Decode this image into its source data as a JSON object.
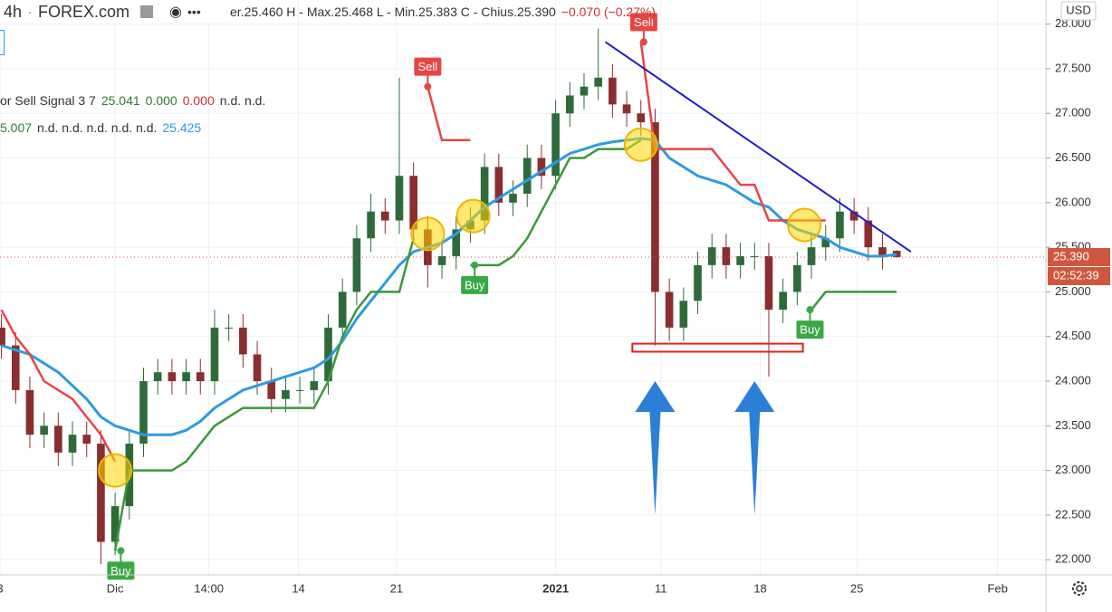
{
  "header": {
    "interval": "4h",
    "source": "FOREX.com",
    "ohlc": "er.25.460 H - Max.25.468 L - Min.25.383 C - Chius.25.390",
    "change": "−0.070 (−0.27%)",
    "indicator_name": "or Sell Signal 3 7",
    "indicator_values": [
      "25.041",
      "0.000",
      "0.000",
      "n.d. n.d."
    ],
    "ma_values": [
      "5.007",
      "n.d. n.d. n.d. n.d. n.d.",
      "25.425"
    ],
    "currency": "USD",
    "last_price_label": "25.390",
    "countdown": "02:52:39"
  },
  "chart_data": {
    "type": "candlestick",
    "x": [
      -8,
      -7,
      -6,
      -5,
      -4,
      -3,
      -2,
      -1,
      0,
      1,
      2,
      3,
      4,
      5,
      6,
      7,
      8,
      9,
      10,
      11,
      12,
      13,
      14,
      15,
      16,
      17,
      18,
      19,
      20,
      21,
      22,
      23,
      24,
      25,
      26,
      27,
      28,
      29,
      30,
      31,
      32,
      33,
      34,
      35,
      36,
      37,
      38,
      39,
      40,
      41,
      42,
      43,
      44,
      45,
      46,
      47,
      48,
      49,
      50,
      51,
      52,
      53,
      54,
      55
    ],
    "open": [
      24.6,
      24.4,
      23.9,
      23.4,
      23.5,
      23.2,
      23.4,
      23.3,
      22.2,
      22.6,
      23.3,
      24.0,
      24.1,
      24.0,
      24.1,
      24.0,
      24.6,
      24.6,
      24.3,
      24.0,
      23.8,
      23.9,
      23.9,
      24.0,
      24.6,
      25.0,
      25.6,
      25.9,
      25.8,
      26.3,
      25.7,
      25.3,
      25.4,
      25.7,
      25.8,
      26.4,
      26.0,
      26.1,
      26.5,
      26.3,
      27.0,
      27.2,
      27.3,
      27.4,
      27.1,
      27.0,
      26.9,
      25.0,
      24.6,
      24.9,
      25.3,
      25.5,
      25.3,
      25.4,
      25.4,
      24.8,
      25.0,
      25.3,
      25.5,
      25.6,
      25.9,
      25.8,
      25.5,
      25.46
    ],
    "high": [
      24.75,
      24.55,
      24.05,
      23.65,
      23.65,
      23.55,
      23.55,
      23.45,
      22.75,
      23.45,
      24.15,
      24.25,
      24.25,
      24.25,
      24.25,
      24.8,
      24.75,
      24.75,
      24.45,
      24.15,
      24.05,
      24.05,
      24.15,
      24.75,
      25.15,
      25.75,
      26.1,
      26.05,
      27.4,
      26.45,
      25.85,
      25.55,
      25.85,
      25.95,
      26.55,
      26.55,
      26.25,
      26.65,
      26.65,
      27.15,
      27.35,
      27.45,
      27.95,
      27.55,
      27.25,
      27.15,
      27.05,
      25.15,
      25.05,
      25.45,
      25.65,
      25.65,
      25.55,
      25.55,
      25.55,
      25.15,
      25.45,
      25.65,
      25.75,
      26.05,
      26.05,
      25.95,
      25.65,
      25.468
    ],
    "low": [
      24.25,
      23.75,
      23.25,
      23.25,
      23.05,
      23.05,
      23.15,
      21.95,
      22.05,
      22.45,
      23.15,
      23.85,
      23.85,
      23.85,
      23.85,
      23.85,
      24.45,
      24.15,
      23.85,
      23.65,
      23.65,
      23.75,
      23.75,
      23.85,
      24.45,
      24.85,
      25.45,
      25.65,
      25.65,
      25.55,
      25.05,
      25.15,
      25.25,
      25.55,
      25.65,
      25.85,
      25.85,
      25.95,
      26.15,
      26.15,
      26.85,
      27.05,
      27.15,
      26.95,
      26.85,
      26.75,
      24.4,
      24.45,
      24.45,
      24.75,
      25.15,
      25.15,
      25.15,
      25.25,
      24.05,
      24.65,
      24.85,
      25.15,
      25.35,
      25.45,
      25.65,
      25.35,
      25.25,
      25.383
    ],
    "close": [
      24.4,
      23.9,
      23.4,
      23.5,
      23.2,
      23.4,
      23.3,
      22.2,
      22.6,
      23.3,
      24.0,
      24.1,
      24.0,
      24.1,
      24.0,
      24.6,
      24.6,
      24.3,
      24.0,
      23.8,
      23.9,
      23.9,
      24.0,
      24.6,
      25.0,
      25.6,
      25.9,
      25.8,
      26.3,
      25.7,
      25.3,
      25.4,
      25.7,
      25.8,
      26.4,
      26.0,
      26.1,
      26.5,
      26.3,
      27.0,
      27.2,
      27.3,
      27.4,
      27.1,
      27.0,
      26.9,
      25.0,
      24.6,
      24.9,
      25.3,
      25.5,
      25.3,
      25.4,
      25.4,
      24.8,
      25.0,
      25.3,
      25.5,
      25.6,
      25.9,
      25.8,
      25.5,
      25.4,
      25.39
    ],
    "up_color": "#2f6b3a",
    "down_color": "#8a2e2e",
    "lines": [
      {
        "color": "#2d9be0",
        "values": [
          24.4,
          24.35,
          24.3,
          24.2,
          24.1,
          23.95,
          23.8,
          23.6,
          23.5,
          23.45,
          23.4,
          23.4,
          23.4,
          23.45,
          23.55,
          23.7,
          23.8,
          23.9,
          23.95,
          24.0,
          24.05,
          24.1,
          24.15,
          24.25,
          24.45,
          24.7,
          24.9,
          25.1,
          25.3,
          25.45,
          25.5,
          25.55,
          25.65,
          25.8,
          25.95,
          26.05,
          26.15,
          26.25,
          26.35,
          26.45,
          26.55,
          26.6,
          26.65,
          26.68,
          26.7,
          26.72,
          26.7,
          26.5,
          26.4,
          26.3,
          26.25,
          26.2,
          26.1,
          26.0,
          25.95,
          25.8,
          25.7,
          25.65,
          25.6,
          25.5,
          25.45,
          25.4,
          25.4,
          25.42
        ]
      },
      {
        "color": "#3a9a3a",
        "values": [
          null,
          null,
          null,
          null,
          null,
          null,
          null,
          null,
          22.1,
          23.0,
          23.0,
          23.0,
          23.0,
          23.1,
          23.3,
          23.5,
          23.6,
          23.7,
          23.7,
          23.7,
          23.7,
          23.7,
          23.7,
          24.0,
          24.5,
          24.8,
          25.0,
          25.0,
          25.0,
          25.6,
          null,
          null,
          null,
          25.3,
          25.3,
          25.3,
          25.4,
          25.6,
          25.9,
          26.2,
          26.5,
          26.5,
          26.6,
          26.6,
          26.6,
          26.7,
          null,
          null,
          null,
          null,
          null,
          null,
          null,
          null,
          null,
          null,
          null,
          24.8,
          25.0,
          25.0,
          25.0,
          25.0,
          25.0,
          25.0
        ]
      },
      {
        "color": "#e84545",
        "values": [
          24.8,
          24.5,
          24.3,
          24.0,
          23.9,
          23.8,
          23.6,
          23.4,
          23.1,
          null,
          null,
          null,
          null,
          null,
          null,
          null,
          null,
          null,
          null,
          null,
          null,
          null,
          null,
          null,
          null,
          null,
          null,
          null,
          null,
          null,
          27.3,
          26.7,
          26.7,
          26.7,
          null,
          null,
          null,
          null,
          null,
          null,
          null,
          null,
          null,
          null,
          null,
          27.8,
          26.6,
          26.6,
          26.6,
          26.6,
          26.6,
          26.4,
          26.2,
          26.2,
          25.8,
          25.8,
          25.8,
          25.8,
          25.8,
          null,
          null,
          null,
          null,
          null
        ]
      }
    ],
    "signals": [
      {
        "label": "Buy",
        "x": 0.4,
        "y": 22.1
      },
      {
        "label": "Sell",
        "x": 22,
        "y": 27.3
      },
      {
        "label": "Buy",
        "x": 25.3,
        "y": 25.3
      },
      {
        "label": "Sell",
        "x": 37.2,
        "y": 27.8
      },
      {
        "label": "Buy",
        "x": 48.9,
        "y": 24.8
      }
    ],
    "circles": [
      {
        "x": 0,
        "y": 23.0
      },
      {
        "x": 22,
        "y": 25.65
      },
      {
        "x": 25.2,
        "y": 25.85
      },
      {
        "x": 37,
        "y": 26.65
      },
      {
        "x": 48.5,
        "y": 25.75
      }
    ],
    "trend_line": {
      "x": [
        34.5,
        56
      ],
      "y": [
        27.8,
        25.45
      ],
      "color": "#1f1fc8"
    },
    "support_box": {
      "x": [
        36.4,
        48.4
      ],
      "y": [
        24.33,
        24.42
      ],
      "color": "#e02020"
    },
    "arrows": [
      {
        "x": 38,
        "y": [
          22.5,
          24.0
        ]
      },
      {
        "x": 45,
        "y": [
          22.5,
          24.0
        ]
      }
    ],
    "last_price": 25.39,
    "xlim": [
      -8.1,
      65.5
    ],
    "xticks": [
      {
        "value": -8.1,
        "label": "3"
      },
      {
        "value": 0,
        "label": "Dic"
      },
      {
        "value": 6.6,
        "label": "14:00"
      },
      {
        "value": 12.9,
        "label": "14"
      },
      {
        "value": 19.8,
        "label": "21"
      },
      {
        "value": 31,
        "label": "2021"
      },
      {
        "value": 38.4,
        "label": "11"
      },
      {
        "value": 45.4,
        "label": "18"
      },
      {
        "value": 52.2,
        "label": "25"
      },
      {
        "value": 62.1,
        "label": "Feb"
      }
    ],
    "ylim": [
      21.83,
      28.27
    ],
    "yticks": [
      {
        "value": 22,
        "label": "22.000"
      },
      {
        "value": 22.5,
        "label": "22.500"
      },
      {
        "value": 23,
        "label": "23.000"
      },
      {
        "value": 23.5,
        "label": "23.500"
      },
      {
        "value": 24,
        "label": "24.000"
      },
      {
        "value": 24.5,
        "label": "24.500"
      },
      {
        "value": 25,
        "label": "25.000"
      },
      {
        "value": 25.5,
        "label": "25.500"
      },
      {
        "value": 26,
        "label": "26.000"
      },
      {
        "value": 26.5,
        "label": "26.500"
      },
      {
        "value": 27,
        "label": "27.000"
      },
      {
        "value": 27.5,
        "label": "27.500"
      },
      {
        "value": 28,
        "label": "28.000"
      }
    ],
    "grid": true
  }
}
